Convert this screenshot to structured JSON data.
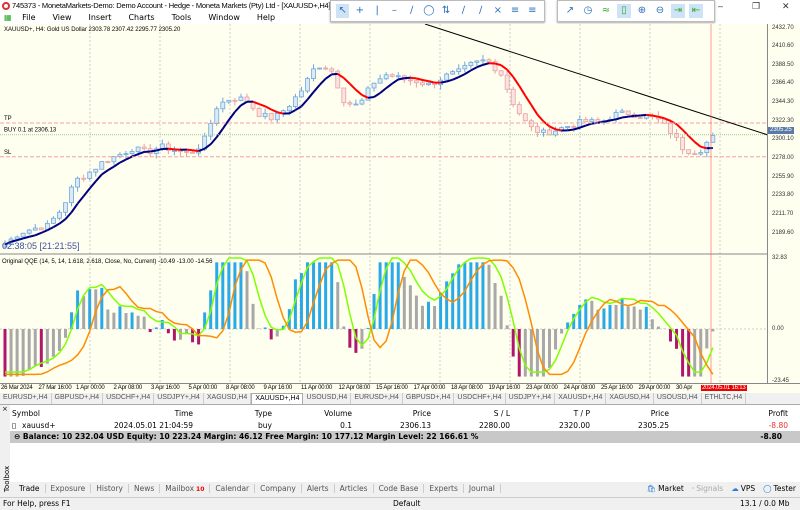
{
  "window": {
    "title": "745373 - MonetaMarkets-Demo: Demo Account - Hedge - Moneta Markets (Pty) Ltd - [XAUUSD+,H4]"
  },
  "menu": [
    "File",
    "View",
    "Insert",
    "Charts",
    "Tools",
    "Window",
    "Help"
  ],
  "chart": {
    "header": "XAUUSD+, H4:  Gold US Dollar  2303.78 2307.42 2295.77 2305.20",
    "tp_label": "TP",
    "sl_label": "SL",
    "buy_label": "BUY 0.1 at 2306.13",
    "timer": "02:38:05 [21:21:55]",
    "price_ticks": [
      "2432.70",
      "2410.60",
      "2388.50",
      "2366.40",
      "2344.30",
      "2322.30",
      "2300.10",
      "2278.00",
      "2255.90",
      "2233.80",
      "2211.70",
      "2189.60"
    ],
    "current_price": "2305.25",
    "tp_price": 2320.0,
    "sl_price": 2280.0,
    "open_price": 2306.13,
    "price_path": [
      2176,
      2190,
      2195,
      2198,
      2218,
      2252,
      2262,
      2275,
      2282,
      2290,
      2285,
      2292,
      2288,
      2283,
      2296,
      2341,
      2350,
      2348,
      2330,
      2325,
      2340,
      2360,
      2389,
      2385,
      2345,
      2340,
      2368,
      2378,
      2372,
      2370,
      2365,
      2375,
      2380,
      2390,
      2395,
      2380,
      2340,
      2315,
      2308,
      2312,
      2318,
      2322,
      2320,
      2330,
      2332,
      2328,
      2326,
      2310,
      2288,
      2286,
      2305
    ],
    "date_ticks": [
      "26 Mar 2024",
      "27 Mar 16:00",
      "1 Apr 00:00",
      "2 Apr 08:00",
      "3 Apr 16:00",
      "5 Apr 00:00",
      "8 Apr 08:00",
      "9 Apr 16:00",
      "11 Apr 00:00",
      "12 Apr 08:00",
      "15 Apr 16:00",
      "17 Apr 00:00",
      "18 Apr 08:00",
      "19 Apr 16:00",
      "23 Apr 00:00",
      "24 Apr 08:00",
      "25 Apr 16:00",
      "29 Apr 00:00",
      "30 Apr"
    ],
    "current_time": "2024.05.01 16:13",
    "indicator": {
      "label": "Original QQE (14, 5, 14, 1.618, 2.618, Close, No, Current) -10.49 -13.00 -14.56",
      "ticks": [
        "32.83",
        "0.00",
        "-23.45"
      ]
    },
    "colors": {
      "bull": "#6fa8dc",
      "bear": "#e8a0a0",
      "ma_up": "#000080",
      "ma_down": "#ff0000",
      "hist_blue": "#29a9e8",
      "hist_grey": "#a8a8a8",
      "hist_neg": "#b0166e",
      "qqe_fast": "#7fff00",
      "qqe_slow": "#ff8c00"
    }
  },
  "symbol_tabs": [
    "EURUSD+,H4",
    "GBPUSD+,H4",
    "USDCHF+,H4",
    "USDJPY+,H4",
    "XAGUSD,H4",
    "XAUUSD+,H4",
    "USOUSD,H4",
    "EURUSD+,H4",
    "GBPUSD+,H4",
    "USDCHF+,H4",
    "USDJPY+,H4",
    "XAUUSD+,H4",
    "XAGUSD,H4",
    "USOUSD,H4",
    "ETHLTC,H4"
  ],
  "trade": {
    "headers": [
      "Symbol",
      "Time",
      "Type",
      "Volume",
      "Price",
      "S / L",
      "T / P",
      "Price",
      "Profit"
    ],
    "row": [
      "xauusd+",
      "2024.05.01 21:04:59",
      "buy",
      "0.1",
      "2306.13",
      "2280.00",
      "2320.00",
      "2305.25",
      "-8.80"
    ],
    "balance": "Balance: 10 232.04 USD  Equity: 10 223.24  Margin: 46.12  Free Margin: 10 177.12  Margin Level: 22 166.61 %",
    "total": "-8.80"
  },
  "toolbox_label": "Toolbox",
  "bottom_tabs": [
    "Trade",
    "Exposure",
    "History",
    "News",
    "Mailbox",
    "Calendar",
    "Company",
    "Alerts",
    "Articles",
    "Code Base",
    "Experts",
    "Journal"
  ],
  "mailbox_count": "10",
  "right_links": [
    "Market",
    "Signals",
    "VPS",
    "Tester"
  ],
  "status": {
    "help": "For Help, press F1",
    "profile": "Default",
    "memory": "13.1 / 0.0 Mb"
  }
}
